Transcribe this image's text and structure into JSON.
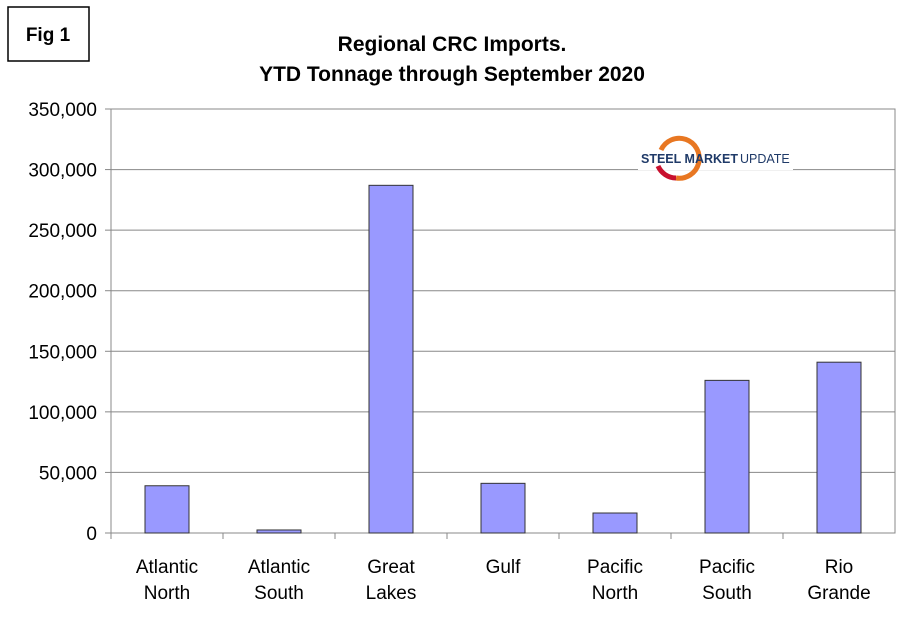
{
  "chart_data": {
    "type": "bar",
    "figure_label": "Fig 1",
    "title": "Regional CRC Imports.",
    "subtitle": "YTD Tonnage through September 2020",
    "logo": {
      "bold": "STEEL MARKET",
      "light": "UPDATE"
    },
    "categories": [
      "Atlantic North",
      "Atlantic South",
      "Great Lakes",
      "Gulf",
      "Pacific North",
      "Pacific South",
      "Rio Grande"
    ],
    "values": [
      39000,
      2500,
      287000,
      41000,
      16500,
      126000,
      141000
    ],
    "color": "#9999ff",
    "ylim": [
      0,
      350000
    ],
    "yticks": [
      0,
      {
        "value": 50000,
        "label": "50,000"
      },
      {
        "value": 100000,
        "label": "100,000"
      },
      {
        "value": 150000,
        "label": "150,000"
      },
      {
        "value": 200000,
        "label": "200,000"
      },
      {
        "value": 250000,
        "label": "250,000"
      },
      {
        "value": 300000,
        "label": "300,000"
      },
      {
        "value": 350000,
        "label": "350,000"
      }
    ],
    "grid": true
  }
}
